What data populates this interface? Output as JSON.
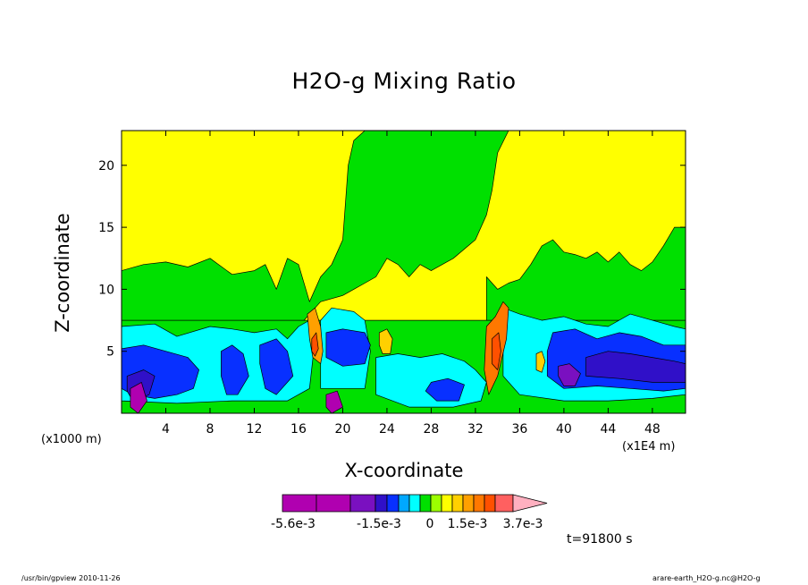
{
  "chart_data": {
    "type": "heatmap",
    "title": "H2O-g Mixing Ratio",
    "xlabel": "X-coordinate",
    "ylabel": "Z-coordinate",
    "x_unit_left": "(x1000 m)",
    "x_unit_right": "(x1E4 m)",
    "x_ticks": [
      "4",
      "8",
      "12",
      "16",
      "20",
      "24",
      "28",
      "32",
      "36",
      "40",
      "44",
      "48"
    ],
    "y_ticks": [
      "5",
      "10",
      "15",
      "20"
    ],
    "xlim": [
      0,
      51
    ],
    "ylim": [
      0,
      22.8
    ],
    "colorbar": {
      "tick_labels": [
        "-5.6e-3",
        "-1.5e-3",
        "0",
        "1.5e-3",
        "3.7e-3"
      ],
      "colors": [
        "#b000b0",
        "#b000b0",
        "#7a10c0",
        "#3010c8",
        "#0830ff",
        "#00a8ff",
        "#00ffff",
        "#00e000",
        "#9cff00",
        "#ffff00",
        "#ffd000",
        "#ffa000",
        "#ff7800",
        "#ff5000",
        "#ff6060",
        "#ffb0c0"
      ]
    },
    "background_level": "#ffff00",
    "time_label": "t=91800 s",
    "footer_left": "/usr/bin/gpview  2010-11-26",
    "footer_right": "arare-earth_H2O-g.nc@H2O-g"
  }
}
